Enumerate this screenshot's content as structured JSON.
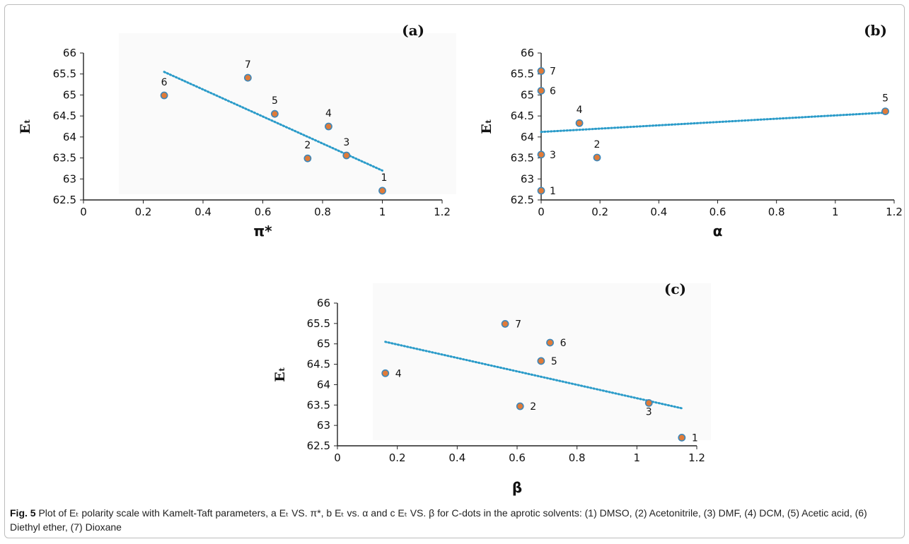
{
  "caption": {
    "label": "Fig. 5",
    "text": "Plot of Eₜ polarity scale with Kamelt-Taft parameters, a Eₜ VS. π*, b Eₜ vs. α and c Eₜ VS. β for C-dots in the aprotic solvents: (1) DMSO, (2) Acetonitrile, (3) DMF, (4) DCM, (5) Acetic acid, (6) Diethyl ether, (7) Dioxane"
  },
  "colors": {
    "marker_fill": "#e07b39",
    "marker_stroke": "#3d86b8",
    "trendline": "#2a9bc9",
    "axis": "#222222"
  },
  "chart_data": [
    {
      "type": "scatter",
      "panel_label": "(a)",
      "xlabel": "π*",
      "ylabel": "Eₜ",
      "xlim": [
        0,
        1.2
      ],
      "ylim": [
        62.5,
        66
      ],
      "x_ticks": [
        "0",
        "0.2",
        "0.4",
        "0.6",
        "0.8",
        "1",
        "1.2"
      ],
      "y_ticks": [
        "62.5",
        "63",
        "63.5",
        "64",
        "64.5",
        "65",
        "65.5",
        "66"
      ],
      "grid": false,
      "points": [
        {
          "label": "1",
          "x": 1.0,
          "y": 62.72
        },
        {
          "label": "2",
          "x": 0.75,
          "y": 63.49
        },
        {
          "label": "3",
          "x": 0.88,
          "y": 63.56
        },
        {
          "label": "4",
          "x": 0.82,
          "y": 64.25
        },
        {
          "label": "5",
          "x": 0.64,
          "y": 64.55
        },
        {
          "label": "6",
          "x": 0.27,
          "y": 64.99
        },
        {
          "label": "7",
          "x": 0.55,
          "y": 65.41
        }
      ],
      "trendline": {
        "x": [
          0.27,
          1.0
        ],
        "y": [
          65.55,
          63.2
        ],
        "style": "dotted"
      }
    },
    {
      "type": "scatter",
      "panel_label": "(b)",
      "xlabel": "α",
      "ylabel": "Eₜ",
      "xlim": [
        0,
        1.2
      ],
      "ylim": [
        62.5,
        66
      ],
      "x_ticks": [
        "0",
        "0.2",
        "0.4",
        "0.6",
        "0.8",
        "1",
        "1.2"
      ],
      "y_ticks": [
        "62.5",
        "63",
        "63.5",
        "64",
        "64.5",
        "65",
        "65.5",
        "66"
      ],
      "grid": false,
      "points": [
        {
          "label": "1",
          "x": 0.0,
          "y": 62.72
        },
        {
          "label": "2",
          "x": 0.19,
          "y": 63.51
        },
        {
          "label": "3",
          "x": 0.0,
          "y": 63.58
        },
        {
          "label": "4",
          "x": 0.13,
          "y": 64.33
        },
        {
          "label": "5",
          "x": 1.17,
          "y": 64.61
        },
        {
          "label": "6",
          "x": 0.0,
          "y": 65.1
        },
        {
          "label": "7",
          "x": 0.0,
          "y": 65.57
        }
      ],
      "trendline": {
        "x": [
          0.0,
          1.17
        ],
        "y": [
          64.12,
          64.58
        ],
        "style": "dotted"
      }
    },
    {
      "type": "scatter",
      "panel_label": "(c)",
      "xlabel": "β",
      "ylabel": "Eₜ",
      "xlim": [
        0,
        1.2
      ],
      "ylim": [
        62.5,
        66
      ],
      "x_ticks": [
        "0",
        "0.2",
        "0.4",
        "0.6",
        "0.8",
        "1",
        "1.2"
      ],
      "y_ticks": [
        "62.5",
        "63",
        "63.5",
        "64",
        "64.5",
        "65",
        "65.5",
        "66"
      ],
      "grid": false,
      "points": [
        {
          "label": "1",
          "x": 1.15,
          "y": 62.7
        },
        {
          "label": "2",
          "x": 0.61,
          "y": 63.47
        },
        {
          "label": "3",
          "x": 1.04,
          "y": 63.55
        },
        {
          "label": "4",
          "x": 0.16,
          "y": 64.28
        },
        {
          "label": "5",
          "x": 0.68,
          "y": 64.58
        },
        {
          "label": "6",
          "x": 0.71,
          "y": 65.03
        },
        {
          "label": "7",
          "x": 0.56,
          "y": 65.49
        }
      ],
      "trendline": {
        "x": [
          0.16,
          1.15
        ],
        "y": [
          65.05,
          63.42
        ],
        "style": "dotted"
      }
    }
  ]
}
